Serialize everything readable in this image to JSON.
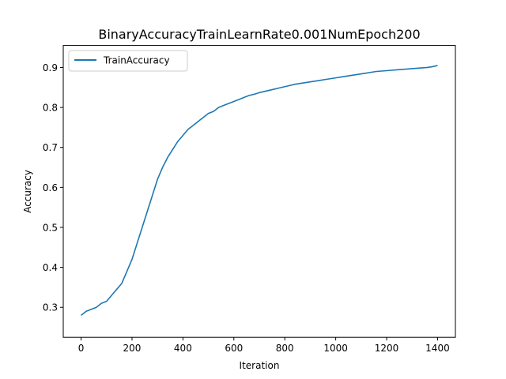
{
  "chart_data": {
    "type": "line",
    "title": "BinaryAccuracyTrainLearnRate0.001NumEpoch200",
    "xlabel": "Iteration",
    "ylabel": "Accuracy",
    "xlim": [
      -70,
      1470
    ],
    "ylim": [
      0.225,
      0.955
    ],
    "xticks": [
      0,
      200,
      400,
      600,
      800,
      1000,
      1200,
      1400
    ],
    "yticks": [
      0.3,
      0.4,
      0.5,
      0.6,
      0.7,
      0.8,
      0.9
    ],
    "legend": {
      "position": "top-left"
    },
    "grid": false,
    "series": [
      {
        "name": "TrainAccuracy",
        "color": "#1f77b4",
        "x": [
          0,
          20,
          40,
          60,
          80,
          100,
          120,
          140,
          160,
          180,
          200,
          220,
          240,
          260,
          280,
          300,
          320,
          340,
          360,
          380,
          400,
          420,
          440,
          460,
          480,
          500,
          520,
          540,
          560,
          580,
          600,
          620,
          640,
          660,
          680,
          700,
          720,
          740,
          760,
          780,
          800,
          820,
          840,
          860,
          880,
          900,
          920,
          940,
          960,
          980,
          1000,
          1020,
          1040,
          1060,
          1080,
          1100,
          1120,
          1140,
          1160,
          1180,
          1200,
          1220,
          1240,
          1260,
          1280,
          1300,
          1320,
          1340,
          1360,
          1380,
          1400
        ],
        "y": [
          0.28,
          0.29,
          0.295,
          0.3,
          0.31,
          0.315,
          0.33,
          0.345,
          0.36,
          0.39,
          0.42,
          0.46,
          0.5,
          0.54,
          0.58,
          0.62,
          0.65,
          0.675,
          0.695,
          0.715,
          0.73,
          0.745,
          0.755,
          0.765,
          0.775,
          0.785,
          0.79,
          0.8,
          0.805,
          0.81,
          0.815,
          0.82,
          0.825,
          0.83,
          0.833,
          0.837,
          0.84,
          0.843,
          0.846,
          0.849,
          0.852,
          0.855,
          0.858,
          0.86,
          0.862,
          0.864,
          0.866,
          0.868,
          0.87,
          0.872,
          0.874,
          0.876,
          0.878,
          0.88,
          0.882,
          0.884,
          0.886,
          0.888,
          0.89,
          0.891,
          0.892,
          0.893,
          0.894,
          0.895,
          0.896,
          0.897,
          0.898,
          0.899,
          0.9,
          0.902,
          0.905
        ]
      }
    ]
  }
}
